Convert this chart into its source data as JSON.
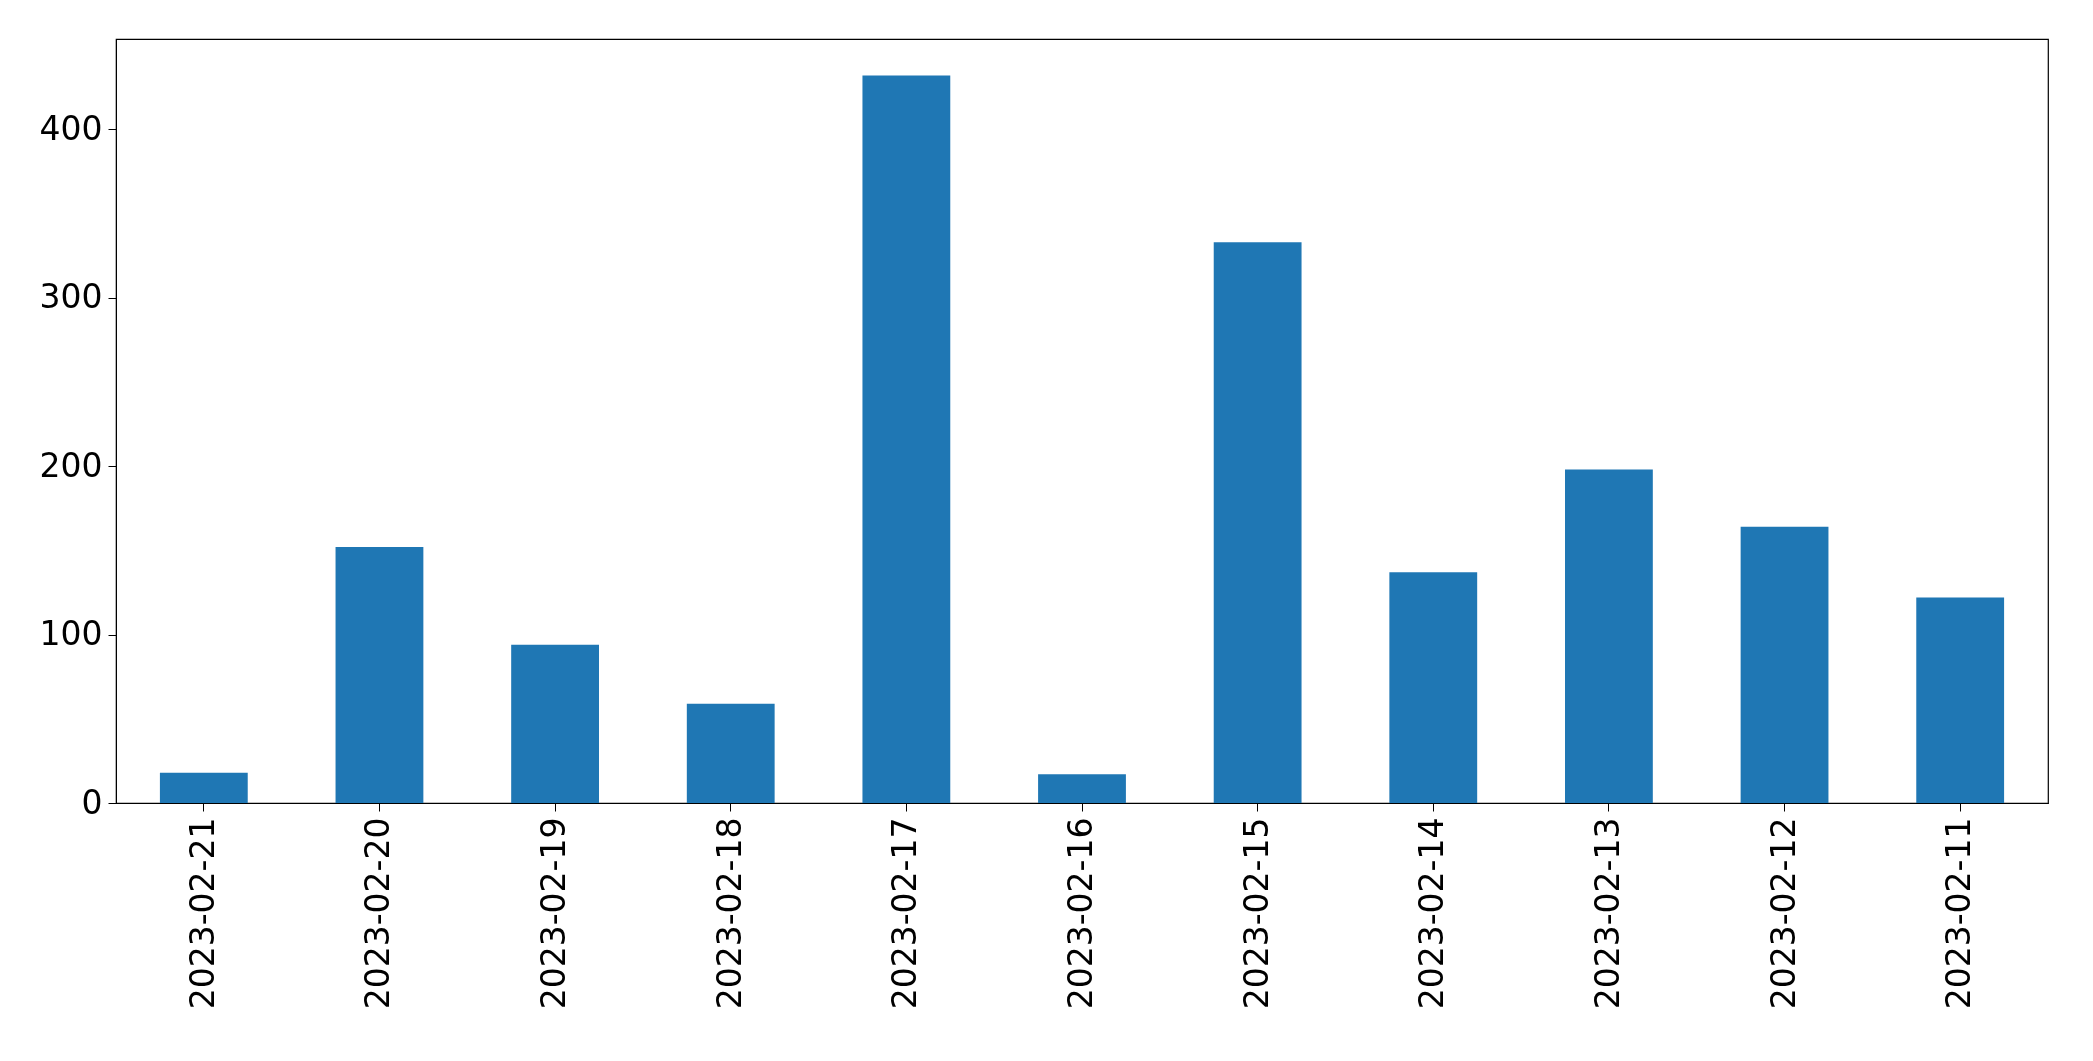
{
  "chart_data": {
    "type": "bar",
    "categories": [
      "2023-02-21",
      "2023-02-20",
      "2023-02-19",
      "2023-02-18",
      "2023-02-17",
      "2023-02-16",
      "2023-02-15",
      "2023-02-14",
      "2023-02-13",
      "2023-02-12",
      "2023-02-11"
    ],
    "values": [
      18,
      152,
      94,
      59,
      432,
      17,
      333,
      137,
      198,
      164,
      122
    ],
    "color": "#1f77b4",
    "ylim": [
      0,
      453.6
    ],
    "yticks": [
      0,
      100,
      200,
      300,
      400
    ]
  }
}
